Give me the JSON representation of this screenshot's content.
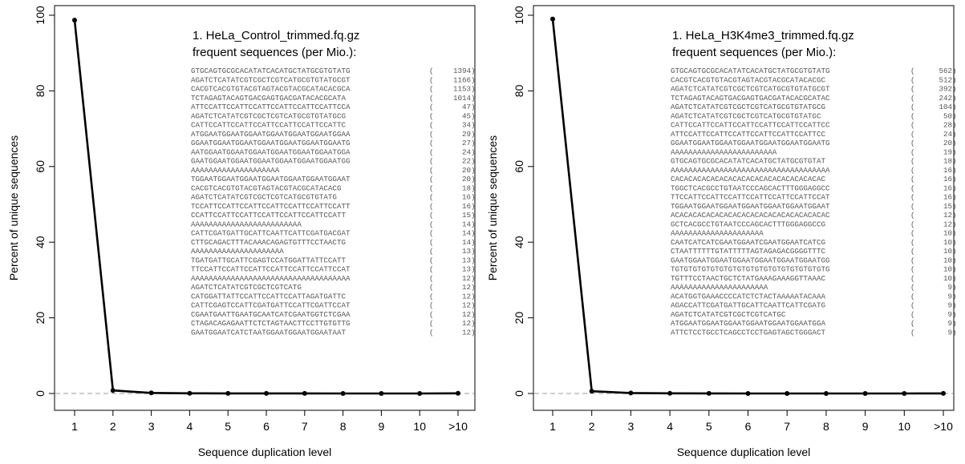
{
  "chart_data": [
    {
      "type": "line",
      "xlabel": "Sequence duplication level",
      "ylabel": "Percent of unique sequences",
      "categories": [
        "1",
        "2",
        "3",
        "4",
        "5",
        "6",
        "7",
        "8",
        "9",
        "10",
        ">10"
      ],
      "values": [
        98.7,
        0.8,
        0.15,
        0.05,
        0.03,
        0.02,
        0.02,
        0.01,
        0.01,
        0.01,
        0.05
      ],
      "ylim": [
        0,
        100
      ],
      "yticks": [
        0,
        20,
        40,
        60,
        80,
        100
      ],
      "title_line1": "1. HeLa_Control_trimmed.fq.gz",
      "title_line2": "frequent sequences (per Mio.):",
      "sequences": [
        {
          "seq": "GTGCAGTGCGCACATATCACATGCTATGCGTGTATG",
          "count": "1394"
        },
        {
          "seq": "AGATCTCATATCGTCGCTCGTCATGCGTGTATGCGT",
          "count": "1166"
        },
        {
          "seq": "CACGTCACGTGTACGTAGTACGTACGCATACACGCA",
          "count": "1153"
        },
        {
          "seq": "TCTAGAGTACAGTGACGAGTGACGATACACGCATA",
          "count": "1014"
        },
        {
          "seq": "ATTCCATTCCATTCCATTCCATTCCATTCCATTCCA",
          "count": "47"
        },
        {
          "seq": "AGATCTCATATCGTCGCTCGTCATGCGTGTATGCG",
          "count": "45"
        },
        {
          "seq": "CATTCCATTCCATTCCATTCCATTCCATTCCATTC",
          "count": "34"
        },
        {
          "seq": "ATGGAATGGAATGGAATGGAATGGAATGGAATGGAA",
          "count": "29"
        },
        {
          "seq": "GGAATGGAATGGAATGGAATGGAATGGAATGGAATG",
          "count": "27"
        },
        {
          "seq": "AATGGAATGGAATGGAATGGAATGGAATGGAATGGA",
          "count": "24"
        },
        {
          "seq": "GAATGGAATGGAATGGAATGGAATGGAATGGAATGG",
          "count": "22"
        },
        {
          "seq": "AAAAAAAAAAAAAAAAAAAA",
          "count": "20"
        },
        {
          "seq": "TGGAATGGAATGGAATGGAATGGAATGGAATGGAAT",
          "count": "20"
        },
        {
          "seq": "CACGTCACGTGTACGTAGTACGTACGCATACACG",
          "count": "18"
        },
        {
          "seq": "AGATCTCATATCGTCGCTCGTCATGCGTGTATG",
          "count": "16"
        },
        {
          "seq": "TCCATTCCATTCCATTCCATTCCATTCCATTCCATT",
          "count": "16"
        },
        {
          "seq": "CCATTCCATTCCATTCCATTCCATTCCATTCCATT",
          "count": "15"
        },
        {
          "seq": "AAAAAAAAAAAAAAAAAAAAAAAAA",
          "count": "14"
        },
        {
          "seq": "CATTCGATGATTGCATTCAATTCATTCGATGACGAT",
          "count": "14"
        },
        {
          "seq": "CTTGCAGACTTTACAAACAGAGTGTTTCCTAACTG",
          "count": "14"
        },
        {
          "seq": "AAAAAAAAAAAAAAAAAAAAA",
          "count": "13"
        },
        {
          "seq": "TGATGATTGCATTCGAGTCCATGGATTATTCCATT",
          "count": "13"
        },
        {
          "seq": "TTCCATTCCATTCCATTCCATTCCATTCCATTCCAT",
          "count": "13"
        },
        {
          "seq": "AAAAAAAAAAAAAAAAAAAAAAAAAAAAAAAAAAAA",
          "count": "12"
        },
        {
          "seq": "AGATCTCATATCGTCGCTCGTCATG",
          "count": "12"
        },
        {
          "seq": "CATGGATTATTCCATTCCATTCCATTAGATGATTC",
          "count": "12"
        },
        {
          "seq": "CATTCGAGTCCATTCGATGATTCCATTCGATTCCAT",
          "count": "12"
        },
        {
          "seq": "CGAATGAATTGAATGCAATCATCGAATGGTCTCGAA",
          "count": "12"
        },
        {
          "seq": "CTAGACAGAGAATTCTCTAGTAACTTCCTTGTGTTG",
          "count": "12"
        },
        {
          "seq": "GAATGGAATCATCTAATGGAATGGAATGGAATAAT",
          "count": "12"
        }
      ]
    },
    {
      "type": "line",
      "xlabel": "Sequence duplication level",
      "ylabel": "Percent of unique sequences",
      "categories": [
        "1",
        "2",
        "3",
        "4",
        "5",
        "6",
        "7",
        "8",
        "9",
        "10",
        ">10"
      ],
      "values": [
        99.0,
        0.6,
        0.12,
        0.04,
        0.02,
        0.01,
        0.01,
        0.01,
        0.01,
        0.01,
        0.03
      ],
      "ylim": [
        0,
        100
      ],
      "yticks": [
        0,
        20,
        40,
        60,
        80,
        100
      ],
      "title_line1": "1. HeLa_H3K4me3_trimmed.fq.gz",
      "title_line2": "frequent sequences (per Mio.):",
      "sequences": [
        {
          "seq": "GTGCAGTGCGCACATATCACATGCTATGCGTGTATG",
          "count": "562"
        },
        {
          "seq": "CACGTCACGTGTACGTAGTACGTACGCATACACGC",
          "count": "512"
        },
        {
          "seq": "AGATCTCATATCGTCGCTCGTCATGCGTGTATGCGT",
          "count": "392"
        },
        {
          "seq": "TCTAGAGTACAGTGACGAGTGACGATACACGCATAC",
          "count": "242"
        },
        {
          "seq": "AGATCTCATATCGTCGCTCGTCATGCGTGTATGCG",
          "count": "104"
        },
        {
          "seq": "AGATCTCATATCGTCGCTCGTCATGCGTGTATGC",
          "count": "50"
        },
        {
          "seq": "CATTCCATTCCATTCCATTCCATTCCATTCCATTCC",
          "count": "28"
        },
        {
          "seq": "ATTCCATTCCATTCCATTCCATTCCATTCCATTCC",
          "count": "24"
        },
        {
          "seq": "GGAATGGAATGGAATGGAATGGAATGGAATGGAATG",
          "count": "20"
        },
        {
          "seq": "AAAAAAAAAAAAAAAAAAAAAAAA",
          "count": "19"
        },
        {
          "seq": "GTGCAGTGCGCACATATCACATGCTATGCGTGTAT",
          "count": "18"
        },
        {
          "seq": "AAAAAAAAAAAAAAAAAAAAAAAAAAAAAAAAAAAA",
          "count": "16"
        },
        {
          "seq": "CACACACACACACACACACACACACACACACACAC",
          "count": "16"
        },
        {
          "seq": "TGGCTCACGCCTGTAATCCCAGCACTTTGGGAGGCC",
          "count": "16"
        },
        {
          "seq": "TTCCATTCCATTCCATTCCATTCCATTCCATTCCAT",
          "count": "16"
        },
        {
          "seq": "TGGAATGGAATGGAATGGAATGGAATGGAATGGAAT",
          "count": "15"
        },
        {
          "seq": "ACACACACACACACACACACACACACACACACACAC",
          "count": "12"
        },
        {
          "seq": "GCTCACGCCTGTAATCCCAGCACTTTGGGAGGCCG",
          "count": "12"
        },
        {
          "seq": "AAAAAAAAAAAAAAAAAAAAA",
          "count": "10"
        },
        {
          "seq": "CAATCATCATCGAATGGAATCGAATGGAATCATCG",
          "count": "10"
        },
        {
          "seq": "CTAATTTTTTGTATTTTTAGTAGAGACGGGGTTTC",
          "count": "10"
        },
        {
          "seq": "GAATGGAATGGAATGGAATGGAATGGAATGGAATGG",
          "count": "10"
        },
        {
          "seq": "TGTGTGTGTGTGTGTGTGTGTGTGTGTGTGTGTGTG",
          "count": "10"
        },
        {
          "seq": "TGTTTCCTAACTGCTCTATGAAAGAAAGGTTAAAC",
          "count": "10"
        },
        {
          "seq": "AAAAAAAAAAAAAAAAAAAAAA",
          "count": "9"
        },
        {
          "seq": "ACATGGTGAAACCCCATCTCTACTAAAAATACAAA",
          "count": "9"
        },
        {
          "seq": "AGACCATTCGATGATTGCATTCAATTCATTCGATG",
          "count": "9"
        },
        {
          "seq": "AGATCTCATATCGTCGCTCGTCATGC",
          "count": "9"
        },
        {
          "seq": "ATGGAATGGAATGGAATGGAATGGAATGGAATGGA",
          "count": "9"
        },
        {
          "seq": "ATTCTCCTGCCTCAGCCTCCTGAGTAGCTGGGACT",
          "count": "9"
        }
      ]
    }
  ]
}
